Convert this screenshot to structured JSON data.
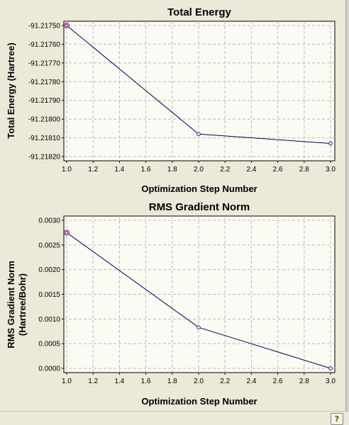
{
  "chart_data": [
    {
      "type": "line",
      "title": "Total Energy",
      "xlabel": "Optimization Step Number",
      "ylabel": "Total Energy (Hartree)",
      "x": [
        1.0,
        2.0,
        3.0
      ],
      "values": [
        -91.2175,
        -91.21808,
        -91.21813
      ],
      "xlim": [
        1.0,
        3.0
      ],
      "ylim": [
        -91.2182,
        -91.2175
      ],
      "xticks": [
        1.0,
        1.2,
        1.4,
        1.6,
        1.8,
        2.0,
        2.2,
        2.4,
        2.6,
        2.8,
        3.0
      ],
      "xtick_labels": [
        "1.0",
        "1.2",
        "1.4",
        "1.6",
        "1.8",
        "2.0",
        "2.2",
        "2.4",
        "2.6",
        "2.8",
        "3.0"
      ],
      "yticks": [
        -91.2175,
        -91.2176,
        -91.2177,
        -91.2178,
        -91.2179,
        -91.218,
        -91.2181,
        -91.2182
      ],
      "ytick_labels": [
        "-91.21750",
        "-91.21760",
        "-91.21770",
        "-91.21780",
        "-91.21790",
        "-91.21800",
        "-91.21810",
        "-91.21820"
      ],
      "grid": true,
      "line_color": "#00005a",
      "marker_color": "#2020b0"
    },
    {
      "type": "line",
      "title": "RMS Gradient Norm",
      "xlabel": "Optimization Step Number",
      "ylabel": "RMS Gradient Norm",
      "ylabel2": "(Hartree/Bohr)",
      "x": [
        1.0,
        2.0,
        3.0
      ],
      "values": [
        0.00275,
        0.00083,
        0.0
      ],
      "xlim": [
        1.0,
        3.0
      ],
      "ylim": [
        0.0,
        0.003
      ],
      "xticks": [
        1.0,
        1.2,
        1.4,
        1.6,
        1.8,
        2.0,
        2.2,
        2.4,
        2.6,
        2.8,
        3.0
      ],
      "xtick_labels": [
        "1.0",
        "1.2",
        "1.4",
        "1.6",
        "1.8",
        "2.0",
        "2.2",
        "2.4",
        "2.6",
        "2.8",
        "3.0"
      ],
      "yticks": [
        0.003,
        0.0025,
        0.002,
        0.0015,
        0.001,
        0.0005,
        0.0
      ],
      "ytick_labels": [
        "0.0030",
        "0.0025",
        "0.0020",
        "0.0015",
        "0.0010",
        "0.0005",
        "0.0000"
      ],
      "grid": true,
      "line_color": "#00005a",
      "marker_color": "#2020b0"
    }
  ],
  "status_bar": {
    "help_icon": "help-icon",
    "help_glyph": "?"
  }
}
